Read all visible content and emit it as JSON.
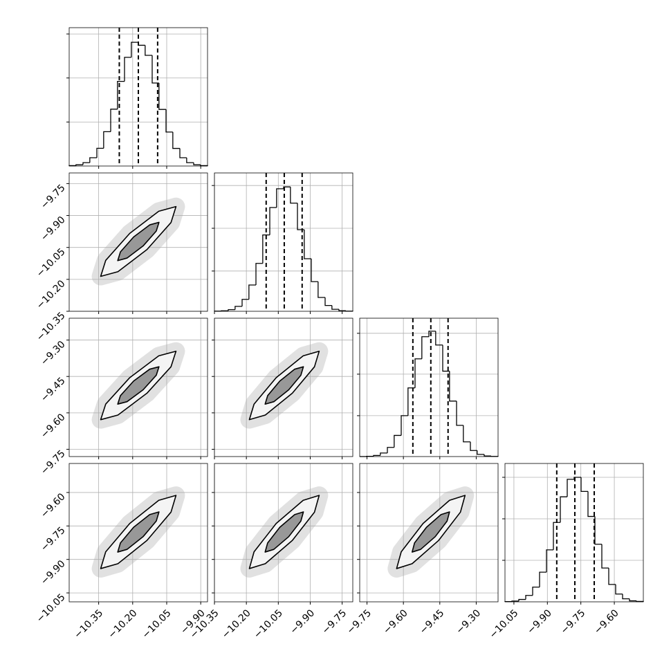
{
  "chart_data": {
    "type": "corner",
    "grid": true,
    "color": "#000000",
    "parameters": [
      {
        "lim": [
          -10.48,
          -9.87
        ],
        "ticks": [
          {
            "value": -10.35,
            "label": "−10.35"
          },
          {
            "value": -10.2,
            "label": "−10.20"
          },
          {
            "value": -10.05,
            "label": "−10.05"
          },
          {
            "value": -9.9,
            "label": "−9.90"
          }
        ],
        "bins": [
          -10.48,
          -10.45,
          -10.419,
          -10.389,
          -10.358,
          -10.328,
          -10.297,
          -10.267,
          -10.236,
          -10.206,
          -10.175,
          -10.145,
          -10.114,
          -10.084,
          -10.053,
          -10.023,
          -9.992,
          -9.962,
          -9.931,
          -9.901,
          -9.87
        ],
        "counts": [
          3,
          10,
          27,
          66,
          141,
          273,
          452,
          673,
          864,
          984,
          960,
          880,
          660,
          450,
          270,
          140,
          66,
          27,
          10,
          3
        ],
        "quantiles": [
          -10.259,
          -10.175,
          -10.09
        ],
        "hist_ylim": [
          0,
          1100
        ],
        "hist_yticks": [
          350,
          700,
          1050
        ]
      },
      {
        "lim": [
          -10.35,
          -9.7
        ],
        "ticks": [
          {
            "value": -10.35,
            "label": "−10.35"
          },
          {
            "value": -10.2,
            "label": "−10.20"
          },
          {
            "value": -10.05,
            "label": "−10.05"
          },
          {
            "value": -9.9,
            "label": "−9.90"
          },
          {
            "value": -9.75,
            "label": "−9.75"
          }
        ],
        "bins": [
          -10.35,
          -10.318,
          -10.285,
          -10.253,
          -10.22,
          -10.188,
          -10.155,
          -10.123,
          -10.09,
          -10.058,
          -10.025,
          -9.993,
          -9.96,
          -9.928,
          -9.895,
          -9.863,
          -9.83,
          -9.798,
          -9.765,
          -9.733,
          -9.7
        ],
        "counts": [
          1,
          4,
          13,
          39,
          95,
          209,
          381,
          607,
          825,
          974,
          989,
          860,
          649,
          418,
          236,
          110,
          46,
          16,
          5,
          1
        ],
        "quantiles": [
          -10.107,
          -10.022,
          -9.938
        ],
        "hist_ylim": [
          0,
          1100
        ],
        "hist_yticks": [
          320,
          660,
          1000
        ]
      },
      {
        "lim": [
          -9.78,
          -9.21
        ],
        "ticks": [
          {
            "value": -9.75,
            "label": "−9.75"
          },
          {
            "value": -9.6,
            "label": "−9.60"
          },
          {
            "value": -9.45,
            "label": "−9.45"
          },
          {
            "value": -9.3,
            "label": "−9.30"
          }
        ],
        "bins": [
          -9.78,
          -9.752,
          -9.723,
          -9.695,
          -9.666,
          -9.638,
          -9.609,
          -9.581,
          -9.552,
          -9.524,
          -9.495,
          -9.467,
          -9.438,
          -9.41,
          -9.381,
          -9.353,
          -9.324,
          -9.296,
          -9.267,
          -9.239,
          -9.21
        ],
        "counts": [
          0,
          2,
          9,
          28,
          73,
          168,
          325,
          546,
          777,
          953,
          997,
          887,
          679,
          441,
          248,
          117,
          48,
          17,
          5,
          1
        ],
        "quantiles": [
          -9.561,
          -9.487,
          -9.416
        ],
        "hist_ylim": [
          0,
          1100
        ],
        "hist_yticks": [
          325,
          655,
          980
        ]
      },
      {
        "lim": [
          -10.09,
          -9.47
        ],
        "ticks": [
          {
            "value": -10.05,
            "label": "−10.05"
          },
          {
            "value": -9.9,
            "label": "−9.90"
          },
          {
            "value": -9.75,
            "label": "−9.75"
          },
          {
            "value": -9.6,
            "label": "−9.60"
          }
        ],
        "bins": [
          -10.09,
          -10.059,
          -10.028,
          -9.997,
          -9.966,
          -9.935,
          -9.904,
          -9.873,
          -9.842,
          -9.811,
          -9.78,
          -9.749,
          -9.718,
          -9.687,
          -9.656,
          -9.625,
          -9.594,
          -9.563,
          -9.532,
          -9.501,
          -9.47
        ],
        "counts": [
          2,
          6,
          19,
          51,
          117,
          236,
          413,
          631,
          835,
          974,
          990,
          878,
          679,
          458,
          269,
          138,
          62,
          24,
          8,
          3
        ],
        "quantiles": [
          -9.858,
          -9.777,
          -9.69
        ],
        "hist_ylim": [
          0,
          1100
        ],
        "hist_yticks": [
          330,
          660,
          990
        ]
      }
    ],
    "pairs": [
      [
        {
          "contours": [
            {
              "x": [
                -10.009,
                -10.085,
                -10.213,
                -10.319,
                -10.341,
                -10.265,
                -10.137,
                -10.031
              ],
              "y": [
                -9.858,
                -9.88,
                -9.984,
                -10.111,
                -10.186,
                -10.164,
                -10.06,
                -9.933
              ]
            },
            {
              "x": [
                -10.084,
                -10.125,
                -10.196,
                -10.254,
                -10.266,
                -10.225,
                -10.154,
                -10.096
              ],
              "y": [
                -9.932,
                -9.944,
                -10.001,
                -10.071,
                -10.112,
                -10.1,
                -10.043,
                -9.973
              ]
            }
          ]
        }
      ],
      [
        {
          "contours": [
            {
              "x": [
                -10.009,
                -10.085,
                -10.213,
                -10.319,
                -10.341,
                -10.265,
                -10.137,
                -10.031
              ],
              "y": [
                -9.346,
                -9.365,
                -9.455,
                -9.564,
                -9.628,
                -9.609,
                -9.519,
                -9.41
              ]
            },
            {
              "x": [
                -10.084,
                -10.125,
                -10.196,
                -10.254,
                -10.266,
                -10.225,
                -10.154,
                -10.096
              ],
              "y": [
                -9.41,
                -9.42,
                -9.469,
                -9.529,
                -9.564,
                -9.554,
                -9.505,
                -9.445
              ]
            }
          ]
        },
        {
          "contours": [
            {
              "x": [
                -9.858,
                -9.933,
                -10.06,
                -10.164,
                -10.186,
                -10.111,
                -9.984,
                -9.88
              ],
              "y": [
                -9.346,
                -9.365,
                -9.455,
                -9.564,
                -9.628,
                -9.609,
                -9.519,
                -9.41
              ]
            },
            {
              "x": [
                -9.932,
                -9.973,
                -10.043,
                -10.1,
                -10.112,
                -10.071,
                -10.001,
                -9.944
              ],
              "y": [
                -9.41,
                -9.42,
                -9.469,
                -9.529,
                -9.564,
                -9.554,
                -9.505,
                -9.445
              ]
            }
          ]
        }
      ],
      [
        {
          "contours": [
            {
              "x": [
                -10.009,
                -10.085,
                -10.213,
                -10.319,
                -10.341,
                -10.265,
                -10.137,
                -10.031
              ],
              "y": [
                -9.613,
                -9.635,
                -9.739,
                -9.866,
                -9.941,
                -9.919,
                -9.815,
                -9.688
              ]
            },
            {
              "x": [
                -10.084,
                -10.125,
                -10.196,
                -10.254,
                -10.266,
                -10.225,
                -10.154,
                -10.096
              ],
              "y": [
                -9.687,
                -9.699,
                -9.756,
                -9.826,
                -9.867,
                -9.855,
                -9.798,
                -9.728
              ]
            }
          ]
        },
        {
          "contours": [
            {
              "x": [
                -9.858,
                -9.933,
                -10.06,
                -10.164,
                -10.186,
                -10.111,
                -9.984,
                -9.88
              ],
              "y": [
                -9.613,
                -9.635,
                -9.739,
                -9.866,
                -9.941,
                -9.919,
                -9.815,
                -9.688
              ]
            },
            {
              "x": [
                -9.932,
                -9.973,
                -10.043,
                -10.1,
                -10.112,
                -10.071,
                -10.001,
                -9.944
              ],
              "y": [
                -9.687,
                -9.699,
                -9.756,
                -9.826,
                -9.867,
                -9.855,
                -9.798,
                -9.728
              ]
            }
          ]
        },
        {
          "contours": [
            {
              "x": [
                -9.346,
                -9.41,
                -9.519,
                -9.609,
                -9.628,
                -9.564,
                -9.455,
                -9.365
              ],
              "y": [
                -9.613,
                -9.635,
                -9.739,
                -9.866,
                -9.941,
                -9.919,
                -9.815,
                -9.688
              ]
            },
            {
              "x": [
                -9.41,
                -9.445,
                -9.505,
                -9.554,
                -9.564,
                -9.529,
                -9.469,
                -9.42
              ],
              "y": [
                -9.687,
                -9.699,
                -9.756,
                -9.826,
                -9.867,
                -9.855,
                -9.798,
                -9.728
              ]
            }
          ]
        }
      ]
    ]
  }
}
